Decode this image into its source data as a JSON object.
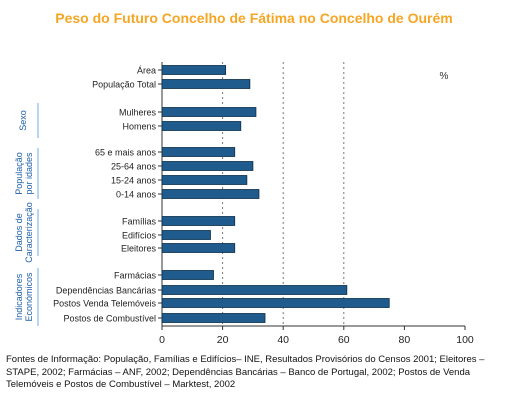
{
  "chart_data": {
    "type": "bar",
    "orientation": "horizontal",
    "title": "Peso do Futuro Concelho de  Fátima no Concelho de Ourém",
    "unit_label": "%",
    "xlim": [
      0,
      100
    ],
    "xticks": [
      "0",
      "20",
      "40",
      "60",
      "80",
      "100"
    ],
    "grid": "vertical dotted gridlines",
    "groups": [
      {
        "name": "",
        "categories": [
          "Área",
          "População Total"
        ],
        "values": [
          21,
          29
        ]
      },
      {
        "name": "Sexo",
        "categories": [
          "Mulheres",
          "Homens"
        ],
        "values": [
          31,
          26
        ]
      },
      {
        "name": "População por idades",
        "categories": [
          "65 e mais anos",
          "25-64 anos",
          "15-24 anos",
          "0-14 anos"
        ],
        "values": [
          24,
          30,
          28,
          32
        ]
      },
      {
        "name": "Dados de Caracterização",
        "categories": [
          "Famílias",
          "Edifícios",
          "Eleitores"
        ],
        "values": [
          24,
          16,
          24
        ]
      },
      {
        "name": "Indicadores Económicos",
        "categories": [
          "Farmácias",
          "Dependências Bancárias",
          "Postos Venda Telemóveis",
          "Postos de Combustível"
        ],
        "values": [
          17,
          61,
          75,
          34
        ]
      }
    ],
    "bar_color": "#1f5b8c",
    "title_color": "#f5a623"
  },
  "footnote": "Fontes de Informação: População, Famílias e Edifícios– INE, Resultados Provisórios do Censos 2001; Eleitores – STAPE, 2002; Farmácias – ANF, 2002; Dependências Bancárias – Banco de Portugal, 2002; Postos de Venda Telemóveis e Postos de Combustível – Marktest, 2002"
}
